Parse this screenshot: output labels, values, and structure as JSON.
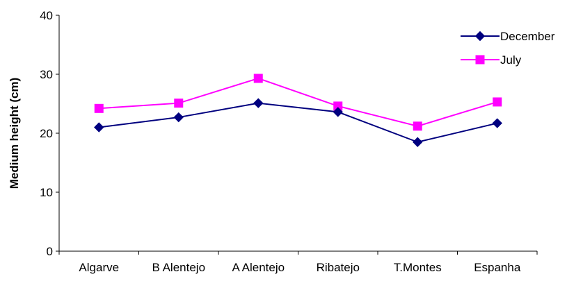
{
  "chart_data": {
    "type": "line",
    "title": "",
    "xlabel": "",
    "ylabel": "Medium height (cm)",
    "categories": [
      "Algarve",
      "B Alentejo",
      "A Alentejo",
      "Ribatejo",
      "T.Montes",
      "Espanha"
    ],
    "ylim": [
      0,
      40
    ],
    "yticks": [
      0,
      10,
      20,
      30,
      40
    ],
    "grid": false,
    "legend_position": "top-right",
    "series": [
      {
        "name": "December",
        "values": [
          21.0,
          22.7,
          25.1,
          23.6,
          18.5,
          21.7
        ],
        "color": "#00007f",
        "marker": "diamond"
      },
      {
        "name": "July",
        "values": [
          24.2,
          25.1,
          29.3,
          24.6,
          21.2,
          25.3
        ],
        "color": "#ff00ff",
        "marker": "square"
      }
    ]
  }
}
